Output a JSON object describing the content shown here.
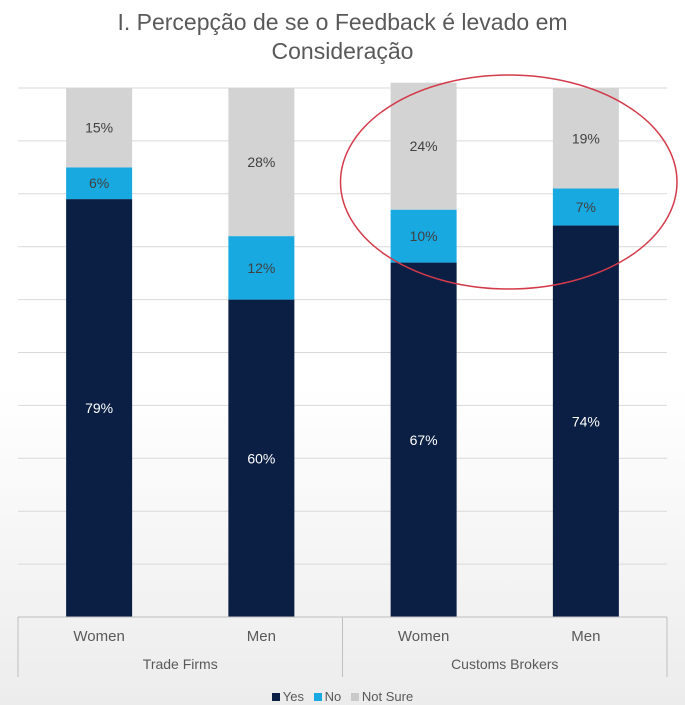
{
  "chart_data": {
    "type": "bar",
    "stacked": true,
    "title_lines": [
      "I. Percepção de se o Feedback é levado em",
      "Consideração"
    ],
    "categories": [
      "Women",
      "Men",
      "Women",
      "Men"
    ],
    "groups": [
      "Trade Firms",
      "Customs Brokers"
    ],
    "group_of_category": [
      0,
      0,
      1,
      1
    ],
    "series": [
      {
        "name": "Yes",
        "color": "#0b1f44",
        "values": [
          79,
          60,
          67,
          74
        ],
        "labels": [
          "79%",
          "60%",
          "67%",
          "74%"
        ]
      },
      {
        "name": "No",
        "color": "#19a9e1",
        "values": [
          6,
          12,
          10,
          7
        ],
        "labels": [
          "6%",
          "12%",
          "10%",
          "7%"
        ]
      },
      {
        "name": "Not Sure",
        "color": "#d3d3d3",
        "values": [
          15,
          28,
          24,
          19
        ],
        "labels": [
          "15%",
          "28%",
          "24%",
          "19%"
        ]
      }
    ],
    "ylim": [
      0,
      100
    ],
    "grid": true,
    "legend_position": "bottom",
    "annotation": {
      "shape": "ellipse",
      "color": "#d33a4a",
      "highlights": "Customs Brokers"
    }
  }
}
